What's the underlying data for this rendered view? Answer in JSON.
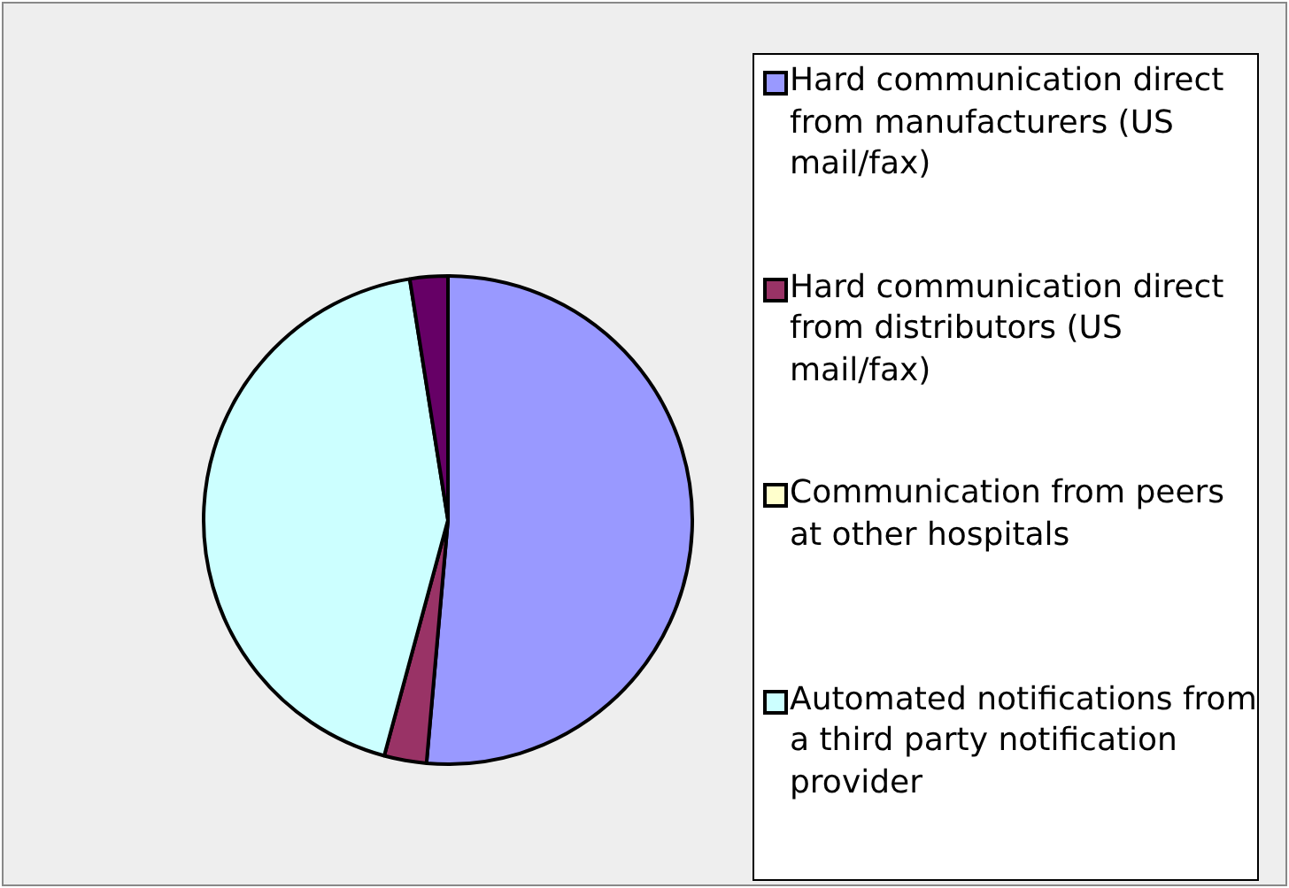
{
  "chart_data": {
    "type": "pie",
    "categories": [
      "Hard communication direct from manufacturers (US mail/fax)",
      "Hard communication direct from distributors (US mail/fax)",
      "Communication from peers at other hospitals",
      "Automated notifications from a third party notification provider",
      null
    ],
    "values": [
      51.4,
      2.8,
      0,
      43.3,
      2.5
    ],
    "colors": [
      "#9999ff",
      "#993366",
      "#ffffcc",
      "#ccffff",
      "#660066"
    ],
    "legend": "right"
  }
}
